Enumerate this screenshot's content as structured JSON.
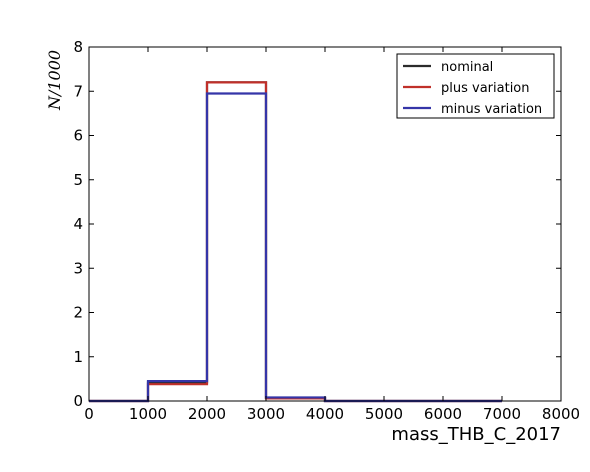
{
  "chart_data": {
    "type": "line",
    "style": "step-histogram",
    "xlabel": "mass_THB_C_2017",
    "ylabel": "N/1000",
    "xlim": [
      0,
      8000
    ],
    "ylim": [
      0,
      8
    ],
    "x_ticks": [
      "0",
      "1000",
      "2000",
      "3000",
      "4000",
      "5000",
      "6000",
      "7000",
      "8000"
    ],
    "y_ticks": [
      "0",
      "1",
      "2",
      "3",
      "4",
      "5",
      "6",
      "7",
      "8"
    ],
    "bin_edges": [
      0,
      1000,
      2000,
      3000,
      4000,
      5000,
      6000,
      7000
    ],
    "legend_position": "top-right",
    "grid": false,
    "series": [
      {
        "name": "nominal",
        "color": "#2b2b2b",
        "values": [
          0.0,
          0.42,
          7.2,
          0.07,
          0.0,
          0.0,
          0.0
        ]
      },
      {
        "name": "plus variation",
        "color": "#c0302a",
        "values": [
          0.0,
          0.38,
          7.2,
          0.06,
          0.0,
          0.0,
          0.0
        ]
      },
      {
        "name": "minus variation",
        "color": "#3535a8",
        "values": [
          0.0,
          0.45,
          6.95,
          0.08,
          0.0,
          0.0,
          0.0
        ]
      }
    ]
  }
}
